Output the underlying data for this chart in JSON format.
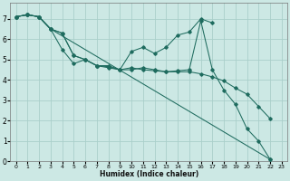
{
  "xlabel": "Humidex (Indice chaleur)",
  "xlim": [
    -0.5,
    23.5
  ],
  "ylim": [
    0,
    7.8
  ],
  "xticks": [
    0,
    1,
    2,
    3,
    4,
    5,
    6,
    7,
    8,
    9,
    10,
    11,
    12,
    13,
    14,
    15,
    16,
    17,
    18,
    19,
    20,
    21,
    22,
    23
  ],
  "yticks": [
    0,
    1,
    2,
    3,
    4,
    5,
    6,
    7
  ],
  "bg_color": "#cce8e4",
  "grid_color": "#aacfca",
  "line_color": "#1e6b5e",
  "line1_x": [
    0,
    1,
    2,
    3,
    4,
    5,
    6,
    7,
    8,
    9,
    10,
    11,
    12,
    13,
    14,
    15,
    16,
    17,
    18,
    19,
    20,
    21,
    22
  ],
  "line1_y": [
    7.1,
    7.2,
    7.1,
    6.5,
    5.5,
    4.8,
    5.0,
    4.7,
    4.6,
    4.5,
    4.5,
    4.6,
    4.5,
    4.4,
    4.4,
    4.4,
    4.3,
    4.15,
    3.95,
    3.6,
    3.3,
    2.7,
    2.1
  ],
  "line2_x": [
    0,
    1,
    2,
    3,
    4,
    5,
    6,
    7,
    8,
    9,
    10,
    11,
    12,
    13,
    14,
    15,
    16,
    17
  ],
  "line2_y": [
    7.1,
    7.2,
    7.1,
    6.5,
    6.3,
    5.2,
    5.0,
    4.7,
    4.7,
    4.5,
    5.4,
    5.6,
    5.3,
    5.6,
    6.2,
    6.35,
    7.0,
    6.8
  ],
  "line3_x": [
    0,
    1,
    2,
    3,
    4,
    5,
    6,
    7,
    8,
    9,
    10,
    11,
    12,
    13,
    14,
    15,
    16,
    17,
    18,
    19,
    20,
    21,
    22
  ],
  "line3_y": [
    7.1,
    7.2,
    7.1,
    6.5,
    6.3,
    5.2,
    5.0,
    4.7,
    4.65,
    4.5,
    4.6,
    4.5,
    4.45,
    4.4,
    4.45,
    4.5,
    6.9,
    4.5,
    3.5,
    2.8,
    1.6,
    1.0,
    0.1
  ],
  "line4_x": [
    0,
    1,
    2,
    3,
    22
  ],
  "line4_y": [
    7.1,
    7.2,
    7.1,
    6.5,
    0.1
  ]
}
